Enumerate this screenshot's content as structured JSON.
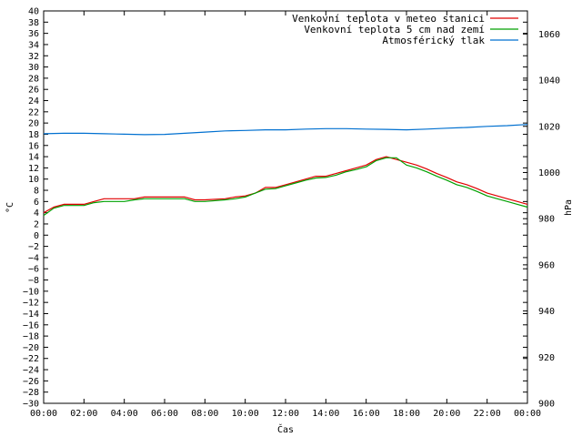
{
  "chart_data": {
    "type": "line",
    "title": "",
    "xlabel": "Čas",
    "ylabel": "°C",
    "y2label": "hPa",
    "xlim": [
      0,
      24
    ],
    "ylim": [
      -30,
      40
    ],
    "y2lim": [
      900,
      1070
    ],
    "x_ticks": [
      "00:00",
      "02:00",
      "04:00",
      "06:00",
      "08:00",
      "10:00",
      "12:00",
      "14:00",
      "16:00",
      "18:00",
      "20:00",
      "22:00",
      "00:00"
    ],
    "y_ticks": [
      40,
      38,
      36,
      34,
      32,
      30,
      28,
      26,
      24,
      22,
      20,
      18,
      16,
      14,
      12,
      10,
      8,
      6,
      4,
      2,
      0,
      -2,
      -4,
      -6,
      -8,
      -10,
      -12,
      -14,
      -16,
      -18,
      -20,
      -22,
      -24,
      -26,
      -28,
      -30
    ],
    "y2_ticks": [
      1060,
      1040,
      1020,
      1000,
      980,
      960,
      940,
      920,
      900
    ],
    "legend_position": "top-right",
    "grid": false,
    "series": [
      {
        "name": "Venkovní teplota v meteo stanici",
        "color": "#e00000",
        "axis": "left",
        "x": [
          0,
          0.5,
          1.0,
          1.5,
          2.0,
          2.5,
          3.0,
          4.0,
          4.5,
          5.0,
          6.0,
          7.0,
          7.5,
          8.0,
          9.0,
          9.5,
          10.0,
          10.5,
          11.0,
          11.5,
          12.0,
          12.5,
          13.0,
          13.5,
          14.0,
          14.5,
          15.0,
          15.5,
          16.0,
          16.5,
          17.0,
          17.5,
          18.0,
          18.5,
          19.0,
          19.5,
          20.0,
          20.5,
          21.0,
          21.5,
          22.0,
          22.5,
          23.0,
          23.5,
          24.0
        ],
        "values": [
          4.0,
          5.0,
          5.5,
          5.5,
          5.5,
          6.0,
          6.5,
          6.5,
          6.5,
          6.8,
          6.8,
          6.8,
          6.3,
          6.3,
          6.5,
          6.8,
          7.0,
          7.5,
          8.5,
          8.5,
          9.0,
          9.5,
          10.0,
          10.5,
          10.5,
          11.0,
          11.5,
          12.0,
          12.5,
          13.5,
          14.0,
          13.5,
          13.0,
          12.5,
          11.8,
          11.0,
          10.3,
          9.5,
          9.0,
          8.3,
          7.5,
          7.0,
          6.5,
          6.0,
          5.5
        ]
      },
      {
        "name": "Venkovní teplota 5 cm nad zemí",
        "color": "#00a000",
        "axis": "left",
        "x": [
          0,
          0.5,
          1.0,
          1.5,
          2.0,
          2.5,
          3.0,
          4.0,
          4.5,
          5.0,
          6.0,
          7.0,
          7.5,
          8.0,
          9.0,
          9.5,
          10.0,
          10.5,
          11.0,
          11.5,
          12.0,
          12.5,
          13.0,
          13.5,
          14.0,
          14.5,
          15.0,
          15.5,
          16.0,
          16.5,
          17.0,
          17.5,
          18.0,
          18.5,
          19.0,
          19.5,
          20.0,
          20.5,
          21.0,
          21.5,
          22.0,
          22.5,
          23.0,
          23.5,
          24.0
        ],
        "values": [
          3.5,
          4.8,
          5.3,
          5.3,
          5.3,
          5.8,
          6.0,
          6.0,
          6.3,
          6.5,
          6.5,
          6.5,
          6.0,
          6.0,
          6.3,
          6.5,
          6.8,
          7.5,
          8.2,
          8.3,
          8.8,
          9.3,
          9.8,
          10.2,
          10.3,
          10.7,
          11.3,
          11.7,
          12.2,
          13.3,
          13.8,
          13.8,
          12.5,
          12.0,
          11.3,
          10.5,
          9.8,
          9.0,
          8.5,
          7.8,
          7.0,
          6.5,
          6.0,
          5.5,
          5.0
        ]
      },
      {
        "name": "Atmosférický tlak",
        "color": "#0070d0",
        "axis": "right",
        "x": [
          0,
          1,
          2,
          3,
          4,
          5,
          6,
          7,
          8,
          9,
          10,
          11,
          12,
          13,
          14,
          15,
          16,
          17,
          18,
          19,
          20,
          21,
          22,
          23,
          24
        ],
        "values": [
          1016.8,
          1017.0,
          1017.0,
          1016.8,
          1016.6,
          1016.4,
          1016.5,
          1017.0,
          1017.5,
          1018.0,
          1018.2,
          1018.5,
          1018.5,
          1018.8,
          1019.0,
          1019.0,
          1018.8,
          1018.7,
          1018.5,
          1018.8,
          1019.2,
          1019.5,
          1020.0,
          1020.3,
          1020.8
        ]
      }
    ]
  }
}
